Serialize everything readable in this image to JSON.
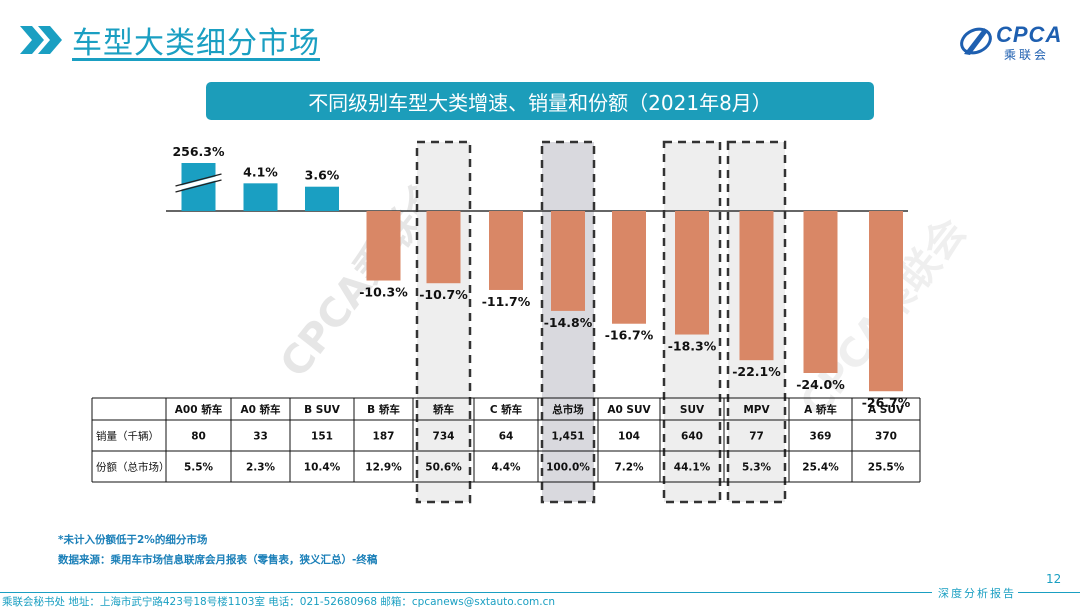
{
  "header": {
    "title": "车型大类细分市场"
  },
  "logo": {
    "text": "CPCA",
    "sub": "乘联会"
  },
  "banner": {
    "title": "不同级别车型大类增速、销量和份额（2021年8月）"
  },
  "colors": {
    "positive": "#1a9fc2",
    "negative": "#d98766",
    "accent": "#1a9fc2",
    "highlight_fill": "#eeeeee",
    "total_fill": "#d9d9de"
  },
  "chart_data": {
    "type": "bar",
    "categories": [
      "A00 轿车",
      "A0 轿车",
      "B SUV",
      "B 轿车",
      "轿车",
      "C 轿车",
      "总市场",
      "A0 SUV",
      "SUV",
      "MPV",
      "A 轿车",
      "A SUV"
    ],
    "values": [
      256.3,
      4.1,
      3.6,
      -10.3,
      -10.7,
      -11.7,
      -14.8,
      -16.7,
      -18.3,
      -22.1,
      -24.0,
      -26.7
    ],
    "value_labels": [
      "256.3%",
      "4.1%",
      "3.6%",
      "-10.3%",
      "-10.7%",
      "-11.7%",
      "-14.8%",
      "-16.7%",
      "-18.3%",
      "-22.1%",
      "-24.0%",
      "-26.7%"
    ],
    "axis_break": [
      0
    ],
    "highlighted": [
      "轿车",
      "总市场",
      "SUV",
      "MPV"
    ],
    "total_category": "总市场",
    "ylim": [
      -27,
      5
    ]
  },
  "table": {
    "rows": [
      {
        "label": "销量（千辆）",
        "values": [
          "80",
          "33",
          "151",
          "187",
          "734",
          "64",
          "1,451",
          "104",
          "640",
          "77",
          "369",
          "370"
        ]
      },
      {
        "label": "份额（总市场）",
        "values": [
          "5.5%",
          "2.3%",
          "10.4%",
          "12.9%",
          "50.6%",
          "4.4%",
          "100.0%",
          "7.2%",
          "44.1%",
          "5.3%",
          "25.4%",
          "25.5%"
        ]
      }
    ]
  },
  "watermark": "CPCA乘联会",
  "notes": [
    "*未计入份额低于2%的细分市场",
    "数据来源：乘用车市场信息联席会月报表（零售表，狭义汇总）-终稿"
  ],
  "footer": {
    "page_number": "12",
    "report_label": "深度分析报告",
    "contact": "乘联会秘书处   地址：上海市武宁路423号18号楼1103室  电话：021-52680968   邮箱：cpcanews@sxtauto.com.cn"
  }
}
